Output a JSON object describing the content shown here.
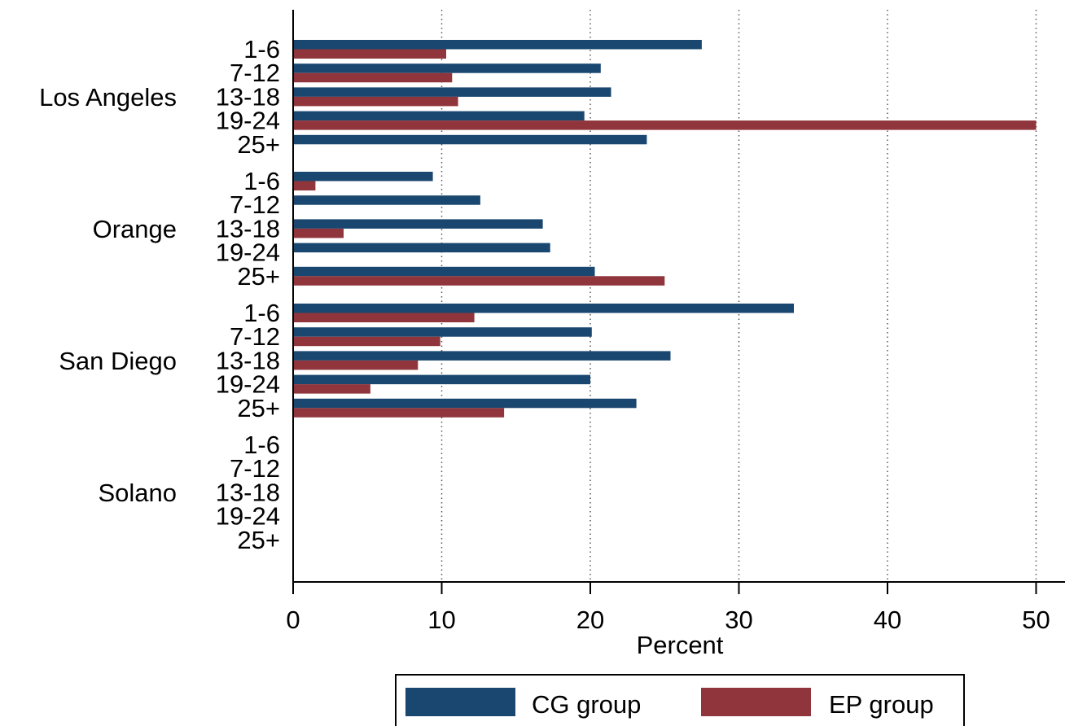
{
  "chart_data": {
    "type": "bar",
    "orientation": "horizontal",
    "xlabel": "Percent",
    "xlim": [
      0,
      52
    ],
    "xticks": [
      0,
      10,
      20,
      30,
      40,
      50
    ],
    "grid": "vertical dotted at major ticks",
    "legend_position": "bottom",
    "subcategories": [
      "1-6",
      "7-12",
      "13-18",
      "19-24",
      "25+"
    ],
    "groups": [
      {
        "name": "Los Angeles",
        "series": [
          {
            "name": "CG group",
            "values": [
              27.5,
              20.7,
              21.4,
              19.6,
              23.8
            ]
          },
          {
            "name": "EP group",
            "values": [
              10.3,
              10.7,
              11.1,
              50.0,
              0
            ]
          }
        ]
      },
      {
        "name": "Orange",
        "series": [
          {
            "name": "CG group",
            "values": [
              9.4,
              12.6,
              16.8,
              17.3,
              20.3
            ]
          },
          {
            "name": "EP group",
            "values": [
              1.5,
              0,
              3.4,
              0,
              25.0
            ]
          }
        ]
      },
      {
        "name": "San Diego",
        "series": [
          {
            "name": "CG group",
            "values": [
              33.7,
              20.1,
              25.4,
              20.0,
              23.1
            ]
          },
          {
            "name": "EP group",
            "values": [
              12.2,
              9.9,
              8.4,
              5.2,
              14.2
            ]
          }
        ]
      },
      {
        "name": "Solano",
        "series": [
          {
            "name": "CG group",
            "values": [
              0,
              0,
              0,
              0,
              0
            ]
          },
          {
            "name": "EP group",
            "values": [
              0,
              0,
              0,
              0,
              0
            ]
          }
        ]
      }
    ],
    "legend": [
      {
        "name": "CG group",
        "color": "#1a476f"
      },
      {
        "name": "EP group",
        "color": "#90353b"
      }
    ]
  }
}
